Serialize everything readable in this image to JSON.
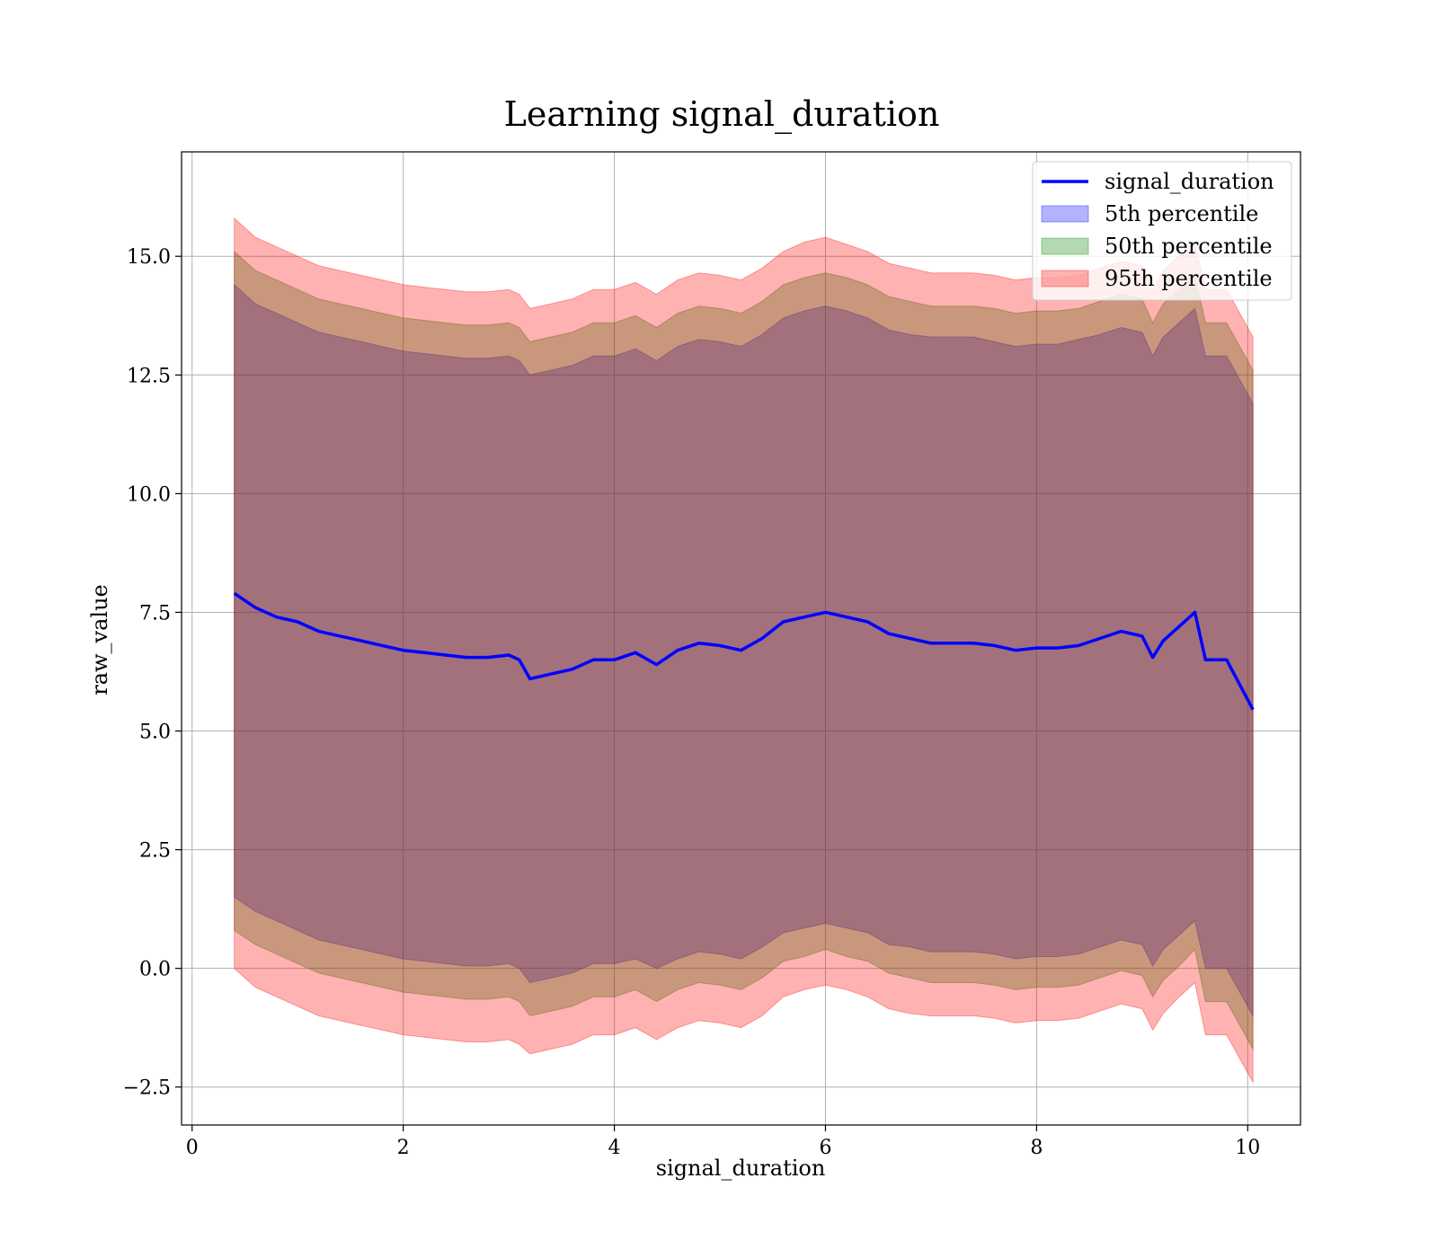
{
  "chart_data": {
    "type": "area",
    "title": "Learning signal_duration",
    "xlabel": "signal_duration",
    "ylabel": "raw_value",
    "xlim": [
      -0.1,
      10.5
    ],
    "ylim": [
      -3.3,
      17.2
    ],
    "x_ticks": [
      0,
      2,
      4,
      6,
      8,
      10
    ],
    "x_tick_labels": [
      "0",
      "2",
      "4",
      "6",
      "8",
      "10"
    ],
    "y_ticks": [
      -2.5,
      0.0,
      2.5,
      5.0,
      7.5,
      10.0,
      12.5,
      15.0
    ],
    "y_tick_labels": [
      "−2.5",
      "0.0",
      "2.5",
      "5.0",
      "7.5",
      "10.0",
      "12.5",
      "15.0"
    ],
    "grid": true,
    "legend_position": "top-right",
    "x": [
      0.4,
      0.6,
      0.8,
      1.0,
      1.2,
      1.4,
      1.6,
      1.8,
      2.0,
      2.2,
      2.4,
      2.6,
      2.8,
      3.0,
      3.1,
      3.2,
      3.4,
      3.6,
      3.8,
      4.0,
      4.2,
      4.4,
      4.6,
      4.8,
      5.0,
      5.2,
      5.4,
      5.6,
      5.8,
      6.0,
      6.2,
      6.4,
      6.6,
      6.8,
      7.0,
      7.2,
      7.4,
      7.6,
      7.8,
      8.0,
      8.2,
      8.4,
      8.6,
      8.8,
      9.0,
      9.1,
      9.2,
      9.35,
      9.5,
      9.6,
      9.8,
      10.05
    ],
    "series": [
      {
        "name": "signal_duration",
        "kind": "line",
        "color": "#0000ff",
        "values": [
          7.9,
          7.6,
          7.4,
          7.3,
          7.1,
          7.0,
          6.9,
          6.8,
          6.7,
          6.65,
          6.6,
          6.55,
          6.55,
          6.6,
          6.5,
          6.1,
          6.2,
          6.3,
          6.5,
          6.5,
          6.65,
          6.4,
          6.7,
          6.85,
          6.8,
          6.7,
          6.95,
          7.3,
          7.4,
          7.5,
          7.4,
          7.3,
          7.05,
          6.95,
          6.85,
          6.85,
          6.85,
          6.8,
          6.7,
          6.75,
          6.75,
          6.8,
          6.95,
          7.1,
          7.0,
          6.55,
          6.9,
          7.2,
          7.5,
          6.5,
          6.5,
          5.45
        ]
      },
      {
        "name": "5th percentile",
        "kind": "band",
        "color": "#0000ff",
        "opacity": 0.3,
        "lower": [
          1.5,
          1.2,
          1.0,
          0.8,
          0.6,
          0.5,
          0.4,
          0.3,
          0.2,
          0.15,
          0.1,
          0.05,
          0.05,
          0.1,
          0.0,
          -0.3,
          -0.2,
          -0.1,
          0.1,
          0.1,
          0.2,
          0.0,
          0.2,
          0.35,
          0.3,
          0.2,
          0.45,
          0.75,
          0.85,
          0.95,
          0.85,
          0.75,
          0.5,
          0.45,
          0.35,
          0.35,
          0.35,
          0.3,
          0.2,
          0.25,
          0.25,
          0.3,
          0.45,
          0.6,
          0.5,
          0.05,
          0.4,
          0.7,
          1.0,
          0.0,
          0.0,
          -1.0
        ],
        "upper": [
          14.4,
          14.0,
          13.8,
          13.6,
          13.4,
          13.3,
          13.2,
          13.1,
          13.0,
          12.95,
          12.9,
          12.85,
          12.85,
          12.9,
          12.8,
          12.5,
          12.6,
          12.7,
          12.9,
          12.9,
          13.05,
          12.8,
          13.1,
          13.25,
          13.2,
          13.1,
          13.35,
          13.7,
          13.85,
          13.95,
          13.85,
          13.7,
          13.45,
          13.35,
          13.3,
          13.3,
          13.3,
          13.2,
          13.1,
          13.15,
          13.15,
          13.25,
          13.35,
          13.5,
          13.4,
          12.9,
          13.3,
          13.6,
          13.9,
          12.9,
          12.9,
          11.9
        ]
      },
      {
        "name": "50th percentile",
        "kind": "band",
        "color": "#008000",
        "opacity": 0.3,
        "lower": [
          0.8,
          0.5,
          0.3,
          0.1,
          -0.1,
          -0.2,
          -0.3,
          -0.4,
          -0.5,
          -0.55,
          -0.6,
          -0.65,
          -0.65,
          -0.6,
          -0.7,
          -1.0,
          -0.9,
          -0.8,
          -0.6,
          -0.6,
          -0.45,
          -0.7,
          -0.45,
          -0.3,
          -0.35,
          -0.45,
          -0.2,
          0.15,
          0.25,
          0.4,
          0.25,
          0.15,
          -0.1,
          -0.2,
          -0.3,
          -0.3,
          -0.3,
          -0.35,
          -0.45,
          -0.4,
          -0.4,
          -0.35,
          -0.2,
          -0.05,
          -0.15,
          -0.6,
          -0.25,
          0.05,
          0.4,
          -0.7,
          -0.7,
          -1.7
        ],
        "upper": [
          15.1,
          14.7,
          14.5,
          14.3,
          14.1,
          14.0,
          13.9,
          13.8,
          13.7,
          13.65,
          13.6,
          13.55,
          13.55,
          13.6,
          13.5,
          13.2,
          13.3,
          13.4,
          13.6,
          13.6,
          13.75,
          13.5,
          13.8,
          13.95,
          13.9,
          13.8,
          14.05,
          14.4,
          14.55,
          14.65,
          14.55,
          14.4,
          14.15,
          14.05,
          13.95,
          13.95,
          13.95,
          13.9,
          13.8,
          13.85,
          13.85,
          13.9,
          14.05,
          14.2,
          14.1,
          13.6,
          14.0,
          14.3,
          14.6,
          13.6,
          13.6,
          12.6
        ]
      },
      {
        "name": "95th percentile",
        "kind": "band",
        "color": "#ff0000",
        "opacity": 0.3,
        "lower": [
          0.0,
          -0.4,
          -0.6,
          -0.8,
          -1.0,
          -1.1,
          -1.2,
          -1.3,
          -1.4,
          -1.45,
          -1.5,
          -1.55,
          -1.55,
          -1.5,
          -1.6,
          -1.8,
          -1.7,
          -1.6,
          -1.4,
          -1.4,
          -1.25,
          -1.5,
          -1.25,
          -1.1,
          -1.15,
          -1.25,
          -1.0,
          -0.6,
          -0.45,
          -0.35,
          -0.45,
          -0.6,
          -0.85,
          -0.95,
          -1.0,
          -1.0,
          -1.0,
          -1.05,
          -1.15,
          -1.1,
          -1.1,
          -1.05,
          -0.9,
          -0.75,
          -0.85,
          -1.3,
          -0.95,
          -0.6,
          -0.3,
          -1.4,
          -1.4,
          -2.4
        ],
        "upper": [
          15.8,
          15.4,
          15.2,
          15.0,
          14.8,
          14.7,
          14.6,
          14.5,
          14.4,
          14.35,
          14.3,
          14.25,
          14.25,
          14.3,
          14.2,
          13.9,
          14.0,
          14.1,
          14.3,
          14.3,
          14.45,
          14.2,
          14.5,
          14.65,
          14.6,
          14.5,
          14.75,
          15.1,
          15.3,
          15.4,
          15.25,
          15.1,
          14.85,
          14.75,
          14.65,
          14.65,
          14.65,
          14.6,
          14.5,
          14.55,
          14.55,
          14.6,
          14.75,
          14.9,
          14.8,
          14.3,
          14.7,
          15.0,
          15.3,
          14.3,
          14.3,
          13.3
        ]
      }
    ]
  }
}
